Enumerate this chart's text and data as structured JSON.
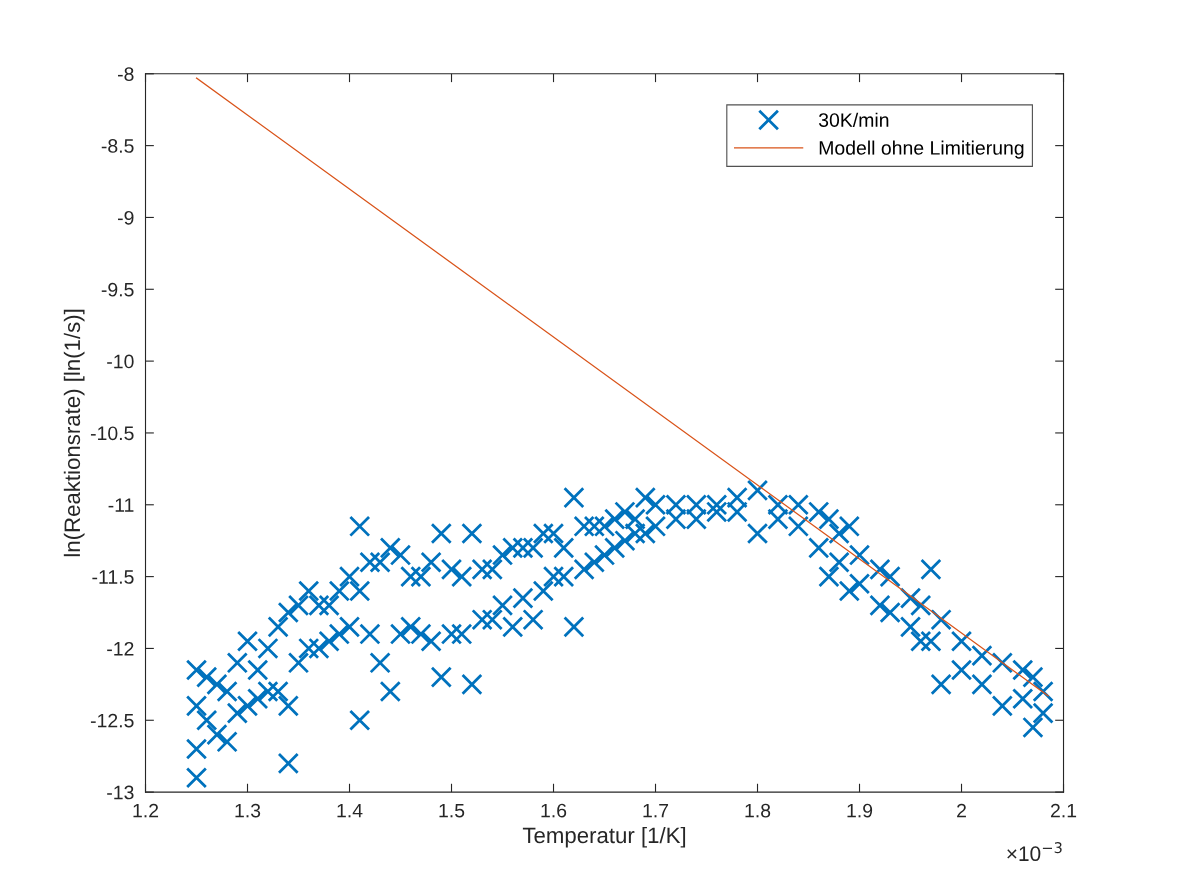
{
  "chart_data": {
    "type": "scatter",
    "xlabel": "Temperatur [1/K]",
    "ylabel": "ln(Reaktionsrate) [ln(1/s)]",
    "annotations": [
      "×10$^{−3}$"
    ],
    "xlim": [
      1.2,
      2.1
    ],
    "xticks": [
      1.2,
      1.3,
      1.4,
      1.5,
      1.6,
      1.7,
      1.8,
      1.9,
      2,
      2.1
    ],
    "ylim": [
      -13,
      -8
    ],
    "yticks": [
      -13,
      -12.5,
      -12,
      -11.5,
      -11,
      -10.5,
      -10,
      -9.5,
      -9,
      -8.5,
      -8
    ],
    "legend": "top right",
    "grid": false,
    "series": [
      {
        "name": "30K/min",
        "marker": "cross",
        "color": "#0072bd",
        "x": [
          1.25,
          1.25,
          1.25,
          1.25,
          1.26,
          1.26,
          1.27,
          1.27,
          1.28,
          1.28,
          1.29,
          1.29,
          1.3,
          1.3,
          1.31,
          1.31,
          1.32,
          1.32,
          1.33,
          1.33,
          1.34,
          1.34,
          1.34,
          1.35,
          1.35,
          1.36,
          1.36,
          1.37,
          1.37,
          1.38,
          1.38,
          1.39,
          1.39,
          1.4,
          1.4,
          1.41,
          1.41,
          1.41,
          1.42,
          1.42,
          1.43,
          1.43,
          1.44,
          1.44,
          1.45,
          1.45,
          1.46,
          1.46,
          1.47,
          1.47,
          1.48,
          1.48,
          1.49,
          1.49,
          1.5,
          1.5,
          1.51,
          1.51,
          1.52,
          1.52,
          1.53,
          1.53,
          1.54,
          1.54,
          1.55,
          1.55,
          1.56,
          1.56,
          1.57,
          1.57,
          1.58,
          1.58,
          1.59,
          1.59,
          1.6,
          1.6,
          1.61,
          1.61,
          1.62,
          1.62,
          1.63,
          1.63,
          1.64,
          1.64,
          1.65,
          1.65,
          1.66,
          1.66,
          1.67,
          1.67,
          1.68,
          1.68,
          1.69,
          1.69,
          1.7,
          1.7,
          1.72,
          1.72,
          1.74,
          1.74,
          1.76,
          1.76,
          1.78,
          1.78,
          1.8,
          1.8,
          1.82,
          1.82,
          1.84,
          1.84,
          1.86,
          1.86,
          1.87,
          1.87,
          1.88,
          1.88,
          1.89,
          1.89,
          1.9,
          1.9,
          1.92,
          1.92,
          1.93,
          1.93,
          1.95,
          1.95,
          1.96,
          1.96,
          1.97,
          1.97,
          1.98,
          1.98,
          2,
          2,
          2.02,
          2.02,
          2.04,
          2.04,
          2.06,
          2.06,
          2.07,
          2.07,
          2.08,
          2.08
        ],
        "values": [
          -12.15,
          -12.4,
          -12.7,
          -12.9,
          -12.2,
          -12.5,
          -12.25,
          -12.6,
          -12.3,
          -12.65,
          -12.1,
          -12.45,
          -11.95,
          -12.4,
          -12.15,
          -12.35,
          -12,
          -12.3,
          -11.85,
          -12.3,
          -11.75,
          -12.4,
          -12.8,
          -11.7,
          -12.1,
          -11.6,
          -12,
          -11.7,
          -12,
          -11.7,
          -11.95,
          -11.6,
          -11.9,
          -11.5,
          -11.85,
          -11.15,
          -11.6,
          -12.5,
          -11.4,
          -11.9,
          -11.4,
          -12.1,
          -11.3,
          -12.3,
          -11.35,
          -11.9,
          -11.5,
          -11.85,
          -11.5,
          -11.9,
          -11.4,
          -11.95,
          -11.2,
          -12.2,
          -11.45,
          -11.9,
          -11.5,
          -11.9,
          -11.2,
          -12.25,
          -11.45,
          -11.8,
          -11.45,
          -11.8,
          -11.35,
          -11.7,
          -11.3,
          -11.85,
          -11.3,
          -11.65,
          -11.3,
          -11.8,
          -11.2,
          -11.6,
          -11.2,
          -11.5,
          -11.3,
          -11.5,
          -10.95,
          -11.85,
          -11.15,
          -11.45,
          -11.15,
          -11.4,
          -11.15,
          -11.35,
          -11.1,
          -11.3,
          -11.05,
          -11.25,
          -11.1,
          -11.2,
          -10.95,
          -11.2,
          -11,
          -11.15,
          -11,
          -11.1,
          -11,
          -11.1,
          -11,
          -11.05,
          -10.95,
          -11.05,
          -10.9,
          -11.2,
          -11,
          -11.1,
          -11,
          -11.15,
          -11.05,
          -11.3,
          -11.1,
          -11.5,
          -11.2,
          -11.4,
          -11.15,
          -11.6,
          -11.35,
          -11.55,
          -11.45,
          -11.7,
          -11.5,
          -11.75,
          -11.65,
          -11.85,
          -11.7,
          -11.95,
          -11.45,
          -11.95,
          -11.8,
          -12.25,
          -11.95,
          -12.15,
          -12.05,
          -12.25,
          -12.1,
          -12.4,
          -12.15,
          -12.35,
          -12.2,
          -12.55,
          -12.3,
          -12.45
        ]
      },
      {
        "name": "Modell ohne Limitierung",
        "type": "line",
        "marker": "none",
        "line_style": "solid",
        "color": "#d95319",
        "x": [
          1.25,
          2.085
        ],
        "values": [
          -8.03,
          -12.33
        ]
      }
    ]
  }
}
